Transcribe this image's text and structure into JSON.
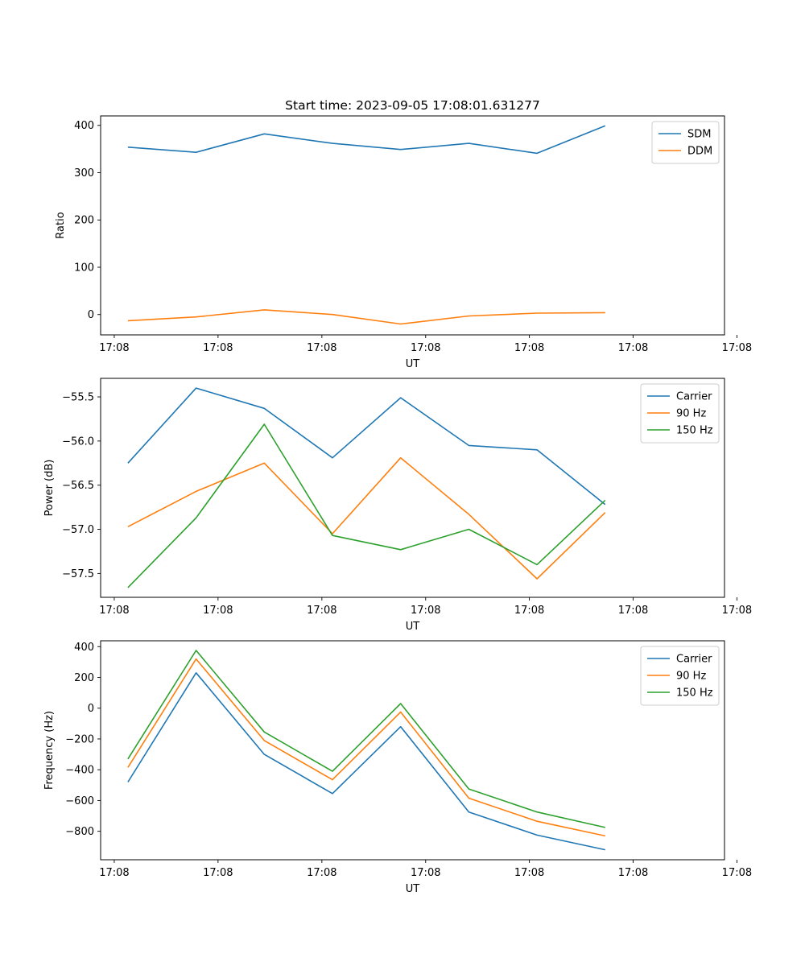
{
  "chart_data": [
    {
      "type": "line",
      "title": "Start time: 2023-09-05 17:08:01.631277",
      "xlabel": "UT",
      "ylabel": "Ratio",
      "xtick_labels": [
        "17:08",
        "17:08",
        "17:08",
        "17:08",
        "17:08",
        "17:08",
        "17:08"
      ],
      "xlim": [
        -0.4,
        8.75
      ],
      "ylim": [
        -43,
        420
      ],
      "yticks": [
        0,
        100,
        200,
        300,
        400
      ],
      "ytick_labels": [
        "0",
        "100",
        "200",
        "300",
        "400"
      ],
      "legend_position": "upper right",
      "x": [
        0,
        1,
        2,
        3,
        4,
        5,
        6,
        7
      ],
      "series": [
        {
          "name": "SDM",
          "color": "#1f77b4",
          "values": [
            354,
            343,
            382,
            362,
            349,
            362,
            341,
            399
          ]
        },
        {
          "name": "DDM",
          "color": "#ff7f0e",
          "values": [
            -13,
            -5,
            10,
            0,
            -20,
            -3,
            3,
            4
          ]
        }
      ]
    },
    {
      "type": "line",
      "title": "",
      "xlabel": "UT",
      "ylabel": "Power (dB)",
      "xtick_labels": [
        "17:08",
        "17:08",
        "17:08",
        "17:08",
        "17:08",
        "17:08",
        "17:08"
      ],
      "xlim": [
        -0.4,
        8.75
      ],
      "ylim": [
        -57.77,
        -55.29
      ],
      "yticks": [
        -57.5,
        -57.0,
        -56.5,
        -56.0,
        -55.5
      ],
      "ytick_labels": [
        "−57.5",
        "−57.0",
        "−56.5",
        "−56.0",
        "−55.5"
      ],
      "legend_position": "upper right",
      "x": [
        0,
        1,
        2,
        3,
        4,
        5,
        6,
        7
      ],
      "series": [
        {
          "name": "Carrier",
          "color": "#1f77b4",
          "values": [
            -56.25,
            -55.4,
            -55.63,
            -56.19,
            -55.51,
            -56.05,
            -56.1,
            -56.72
          ]
        },
        {
          "name": "90 Hz",
          "color": "#ff7f0e",
          "values": [
            -56.97,
            -56.57,
            -56.25,
            -57.05,
            -56.19,
            -56.83,
            -57.56,
            -56.81
          ]
        },
        {
          "name": "150 Hz",
          "color": "#2ca02c",
          "values": [
            -57.66,
            -56.87,
            -55.81,
            -57.07,
            -57.23,
            -57.0,
            -57.4,
            -56.67
          ]
        }
      ]
    },
    {
      "type": "line",
      "title": "",
      "xlabel": "UT",
      "ylabel": "Frequency (Hz)",
      "xtick_labels": [
        "17:08",
        "17:08",
        "17:08",
        "17:08",
        "17:08",
        "17:08",
        "17:08"
      ],
      "xlim": [
        -0.4,
        8.75
      ],
      "ylim": [
        -985,
        438
      ],
      "yticks": [
        -800,
        -600,
        -400,
        -200,
        0,
        200,
        400
      ],
      "ytick_labels": [
        "−800",
        "−600",
        "−400",
        "−200",
        "0",
        "200",
        "400"
      ],
      "legend_position": "upper right",
      "x": [
        0,
        1,
        2,
        3,
        4,
        5,
        6,
        7
      ],
      "series": [
        {
          "name": "Carrier",
          "color": "#1f77b4",
          "values": [
            -480,
            230,
            -300,
            -555,
            -120,
            -675,
            -825,
            -920
          ]
        },
        {
          "name": "90 Hz",
          "color": "#ff7f0e",
          "values": [
            -385,
            320,
            -210,
            -465,
            -25,
            -585,
            -735,
            -830
          ]
        },
        {
          "name": "150 Hz",
          "color": "#2ca02c",
          "values": [
            -330,
            375,
            -155,
            -410,
            30,
            -525,
            -675,
            -775
          ]
        }
      ]
    }
  ]
}
